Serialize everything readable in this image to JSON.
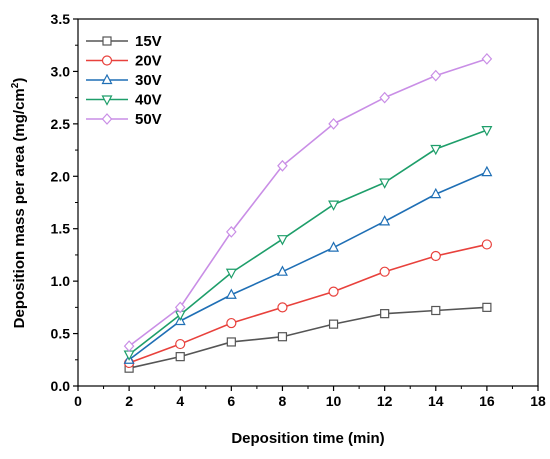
{
  "chart_data": {
    "type": "line",
    "xlabel": "Deposition time (min)",
    "ylabel_main": "Deposition mass per area (mg/cm",
    "ylabel_sup": "2",
    "ylabel_close": ")",
    "xlim": [
      0,
      18
    ],
    "ylim": [
      0,
      3.5
    ],
    "xticks": [
      0,
      2,
      4,
      6,
      8,
      10,
      12,
      14,
      16,
      18
    ],
    "yticks": [
      "0.0",
      "0.5",
      "1.0",
      "1.5",
      "2.0",
      "2.5",
      "3.0",
      "3.5"
    ],
    "x": [
      2,
      4,
      6,
      8,
      10,
      12,
      14,
      16
    ],
    "legend_position": "top-left",
    "grid": false,
    "series": [
      {
        "name": "15V",
        "color": "#555555",
        "marker": "square",
        "values": [
          0.17,
          0.28,
          0.42,
          0.47,
          0.59,
          0.69,
          0.72,
          0.75
        ]
      },
      {
        "name": "20V",
        "color": "#e8413c",
        "marker": "circle",
        "values": [
          0.22,
          0.4,
          0.6,
          0.75,
          0.9,
          1.09,
          1.24,
          1.35
        ]
      },
      {
        "name": "30V",
        "color": "#1f6fb5",
        "marker": "triangle-up",
        "values": [
          0.25,
          0.62,
          0.87,
          1.09,
          1.32,
          1.57,
          1.83,
          2.04
        ]
      },
      {
        "name": "40V",
        "color": "#1e9e6a",
        "marker": "triangle-down",
        "values": [
          0.3,
          0.68,
          1.08,
          1.4,
          1.73,
          1.94,
          2.26,
          2.44
        ]
      },
      {
        "name": "50V",
        "color": "#c98ee6",
        "marker": "diamond",
        "values": [
          0.38,
          0.75,
          1.47,
          2.1,
          2.5,
          2.75,
          2.96,
          3.12
        ]
      }
    ]
  }
}
